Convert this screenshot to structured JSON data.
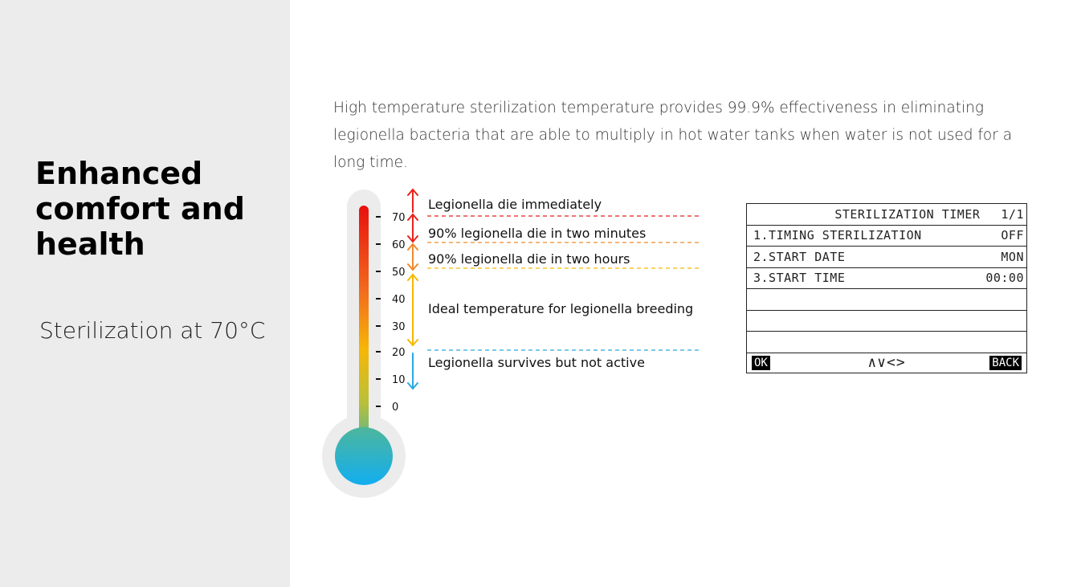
{
  "heading": {
    "title": "Enhanced comfort and health"
  },
  "subtitle": "Sterilization at 70°C",
  "intro": "High temperature sterilization temperature provides 99.9% effectiveness in eliminating legionella bacteria that are able to multiply in hot water tanks when water is not used for a long time.",
  "thermometer": {
    "ticks": [
      "70",
      "60",
      "50",
      "40",
      "30",
      "20",
      "10",
      "0"
    ],
    "annotations": [
      "Legionella die immediately",
      "90% legionella die in two minutes",
      "90% legionella die in two hours",
      "Ideal temperature for legionella breeding",
      "Legionella survives but not active"
    ],
    "colors": {
      "hot": "#e8221c",
      "warm": "#f08a2c",
      "breeding": "#f5b800",
      "cold": "#2aa9e0",
      "bulb": "#29b6e6"
    }
  },
  "lcd": {
    "title": "STERILIZATION TIMER",
    "page": "1/1",
    "rows": [
      {
        "label": "1.TIMING STERILIZATION",
        "value": "OFF"
      },
      {
        "label": "2.START DATE",
        "value": "MON"
      },
      {
        "label": "3.START TIME",
        "value": "00:00"
      }
    ],
    "ok_label": "OK",
    "nav_label": "∧∨<>",
    "back_label": "BACK"
  }
}
